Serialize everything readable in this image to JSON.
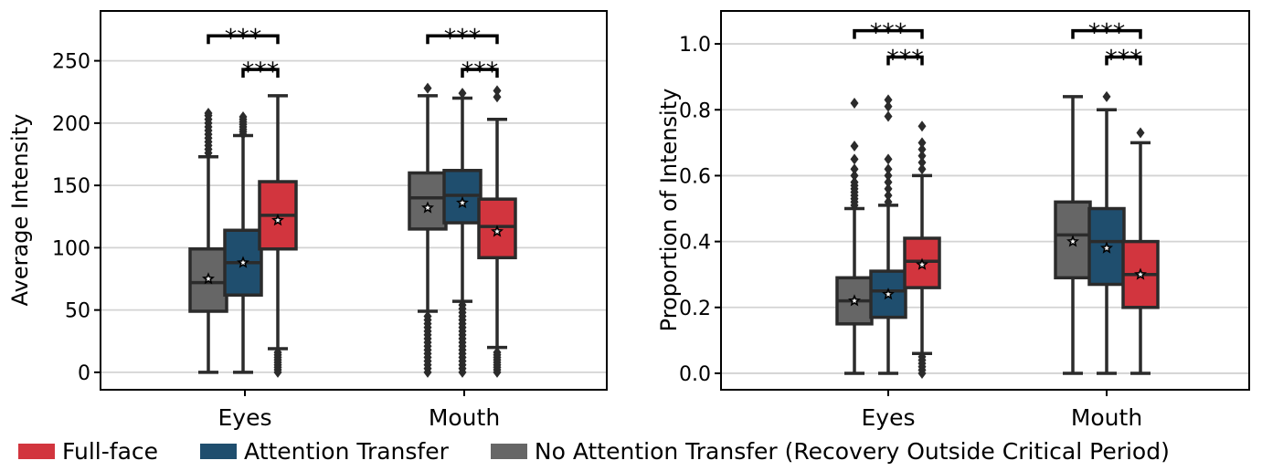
{
  "legend": [
    {
      "label": "Full-face",
      "color": "#d2353e"
    },
    {
      "label": "Attention Transfer",
      "color": "#1f4e6e"
    },
    {
      "label": "No Attention Transfer (Recovery Outside Critical Period)",
      "color": "#666666"
    }
  ],
  "chart_data": [
    {
      "type": "box",
      "title": "",
      "xlabel": "",
      "ylabel": "Average Intensity",
      "ylim": [
        -14,
        290
      ],
      "yticks": [
        0,
        50,
        100,
        150,
        200,
        250
      ],
      "grid": true,
      "categories": [
        "Eyes",
        "Mouth"
      ],
      "significance_label": "***",
      "groups": [
        {
          "category": "Eyes",
          "boxes": [
            {
              "series": "No Attention Transfer (Recovery Outside Critical Period)",
              "min": 0,
              "q1": 49,
              "median": 72,
              "q3": 99,
              "max": 173,
              "mean": 75,
              "outliers": [
                176,
                179,
                182,
                185,
                188,
                191,
                194,
                197,
                200,
                203,
                206,
                208
              ]
            },
            {
              "series": "Attention Transfer",
              "min": 0,
              "q1": 62,
              "median": 88,
              "q3": 114,
              "max": 190,
              "mean": 88,
              "outliers": [
                191,
                193,
                195,
                197,
                199,
                201,
                203,
                205
              ]
            },
            {
              "series": "Full-face",
              "min": 19,
              "q1": 99,
              "median": 126,
              "q3": 153,
              "max": 222,
              "mean": 122,
              "outliers": [
                0,
                2,
                4,
                6,
                8,
                10,
                12,
                14,
                16
              ]
            }
          ]
        },
        {
          "category": "Mouth",
          "boxes": [
            {
              "series": "No Attention Transfer (Recovery Outside Critical Period)",
              "min": 49,
              "q1": 115,
              "median": 140,
              "q3": 160,
              "max": 222,
              "mean": 132,
              "outliers": [
                0,
                3,
                6,
                9,
                12,
                15,
                18,
                21,
                24,
                27,
                30,
                33,
                36,
                39,
                42,
                45,
                228
              ]
            },
            {
              "series": "Attention Transfer",
              "min": 57,
              "q1": 120,
              "median": 142,
              "q3": 162,
              "max": 220,
              "mean": 136,
              "outliers": [
                0,
                3,
                6,
                9,
                12,
                15,
                18,
                21,
                24,
                27,
                30,
                33,
                36,
                39,
                42,
                45,
                48,
                51,
                54,
                224
              ]
            },
            {
              "series": "Full-face",
              "min": 20,
              "q1": 92,
              "median": 117,
              "q3": 139,
              "max": 203,
              "mean": 113,
              "outliers": [
                0,
                2,
                4,
                6,
                8,
                10,
                12,
                14,
                16,
                221,
                226
              ]
            }
          ]
        }
      ]
    },
    {
      "type": "box",
      "title": "",
      "xlabel": "",
      "ylabel": "Proportion of Intensity",
      "ylim": [
        -0.05,
        1.1
      ],
      "yticks": [
        0.0,
        0.2,
        0.4,
        0.6,
        0.8,
        1.0
      ],
      "ytick_labels": [
        "0.0",
        "0.2",
        "0.4",
        "0.6",
        "0.8",
        "1.0"
      ],
      "grid": true,
      "categories": [
        "Eyes",
        "Mouth"
      ],
      "significance_label": "***",
      "groups": [
        {
          "category": "Eyes",
          "boxes": [
            {
              "series": "No Attention Transfer (Recovery Outside Critical Period)",
              "min": 0,
              "q1": 0.15,
              "median": 0.22,
              "q3": 0.29,
              "max": 0.5,
              "mean": 0.22,
              "outliers": [
                0.51,
                0.52,
                0.53,
                0.54,
                0.55,
                0.56,
                0.57,
                0.58,
                0.6,
                0.62,
                0.65,
                0.69,
                0.82
              ]
            },
            {
              "series": "Attention Transfer",
              "min": 0,
              "q1": 0.17,
              "median": 0.25,
              "q3": 0.31,
              "max": 0.51,
              "mean": 0.24,
              "outliers": [
                0.52,
                0.54,
                0.56,
                0.58,
                0.6,
                0.62,
                0.65,
                0.78,
                0.81,
                0.83
              ]
            },
            {
              "series": "Full-face",
              "min": 0.06,
              "q1": 0.26,
              "median": 0.34,
              "q3": 0.41,
              "max": 0.6,
              "mean": 0.33,
              "outliers": [
                0,
                0.01,
                0.02,
                0.03,
                0.04,
                0.05,
                0.62,
                0.64,
                0.66,
                0.68,
                0.7,
                0.75
              ]
            }
          ]
        },
        {
          "category": "Mouth",
          "boxes": [
            {
              "series": "No Attention Transfer (Recovery Outside Critical Period)",
              "min": 0,
              "q1": 0.29,
              "median": 0.42,
              "q3": 0.52,
              "max": 0.84,
              "mean": 0.4,
              "outliers": []
            },
            {
              "series": "Attention Transfer",
              "min": 0,
              "q1": 0.27,
              "median": 0.4,
              "q3": 0.5,
              "max": 0.8,
              "mean": 0.38,
              "outliers": [
                0.84
              ]
            },
            {
              "series": "Full-face",
              "min": 0,
              "q1": 0.2,
              "median": 0.3,
              "q3": 0.4,
              "max": 0.7,
              "mean": 0.3,
              "outliers": [
                0.73
              ]
            }
          ]
        }
      ]
    }
  ]
}
